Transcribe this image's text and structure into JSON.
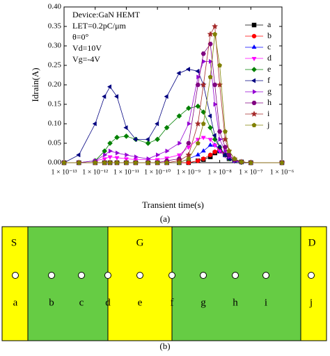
{
  "chart_data": {
    "type": "line",
    "xscale": "log",
    "ylabel": "Idrain(A)",
    "xlabel": "Transient time(s)",
    "annotations": [
      "Device:GaN HEMT",
      "LET=0.2pC/μm",
      "θ=0°",
      "Vd=10V",
      "Vg=-4V"
    ],
    "xlim": [
      1e-13,
      1e-06
    ],
    "xticks": [
      {
        "value": 1e-13,
        "label": "1 × 10⁻¹³"
      },
      {
        "value": 1e-12,
        "label": "1 × 10⁻¹²"
      },
      {
        "value": 1e-11,
        "label": "1 × 10⁻¹¹"
      },
      {
        "value": 1e-10,
        "label": "1 × 10⁻¹⁰"
      },
      {
        "value": 1e-09,
        "label": "1 × 10⁻⁹"
      },
      {
        "value": 1e-08,
        "label": "1 × 10⁻⁸"
      },
      {
        "value": 1e-07,
        "label": "1 × 10⁻⁷"
      },
      {
        "value": 1e-06,
        "label": "1 × 10⁻⁶"
      }
    ],
    "ylim": [
      0,
      0.4
    ],
    "yticks": [
      {
        "value": 0,
        "label": "0.00"
      },
      {
        "value": 0.05,
        "label": "0.05"
      },
      {
        "value": 0.1,
        "label": "0.10"
      },
      {
        "value": 0.15,
        "label": "0.15"
      },
      {
        "value": 0.2,
        "label": "0.20"
      },
      {
        "value": 0.25,
        "label": "0.25"
      },
      {
        "value": 0.3,
        "label": "0.30"
      },
      {
        "value": 0.35,
        "label": "0.35"
      },
      {
        "value": 0.4,
        "label": "0.40"
      }
    ],
    "x": [
      1e-13,
      3e-13,
      1e-12,
      2e-12,
      3e-12,
      5e-12,
      1e-11,
      2e-11,
      5e-11,
      1e-10,
      2e-10,
      5e-10,
      1e-09,
      2e-09,
      3e-09,
      5e-09,
      7e-09,
      1e-08,
      1.5e-08,
      2e-08,
      3e-08,
      5e-08,
      1e-07,
      1e-06
    ],
    "legend": "upper right",
    "series": [
      {
        "name": "a",
        "color": "#000000",
        "marker": "square",
        "values": [
          0,
          0,
          0,
          0,
          0,
          0,
          0,
          0,
          0,
          0,
          0,
          0,
          0,
          0.005,
          0.008,
          0.015,
          0.025,
          0.03,
          0.02,
          0.01,
          0.005,
          0.002,
          0,
          0
        ]
      },
      {
        "name": "b",
        "color": "#ff0000",
        "marker": "circle",
        "values": [
          0,
          0,
          0,
          0,
          0,
          0,
          0,
          0,
          0,
          0,
          0,
          0,
          0,
          0.005,
          0.01,
          0.02,
          0.028,
          0.035,
          0.02,
          0.01,
          0.005,
          0.002,
          0,
          0
        ]
      },
      {
        "name": "c",
        "color": "#0000ff",
        "marker": "tri-up",
        "values": [
          0,
          0,
          0,
          0,
          0,
          0,
          0,
          0,
          0,
          0,
          0,
          0,
          0.01,
          0.02,
          0.03,
          0.045,
          0.045,
          0.03,
          0.018,
          0.01,
          0.004,
          0.001,
          0,
          0
        ]
      },
      {
        "name": "d",
        "color": "#ff00ff",
        "marker": "tri-down",
        "values": [
          0,
          0,
          0.005,
          0.01,
          0.015,
          0.013,
          0.01,
          0.008,
          0.008,
          0.008,
          0.012,
          0.02,
          0.04,
          0.06,
          0.065,
          0.06,
          0.045,
          0.03,
          0.018,
          0.01,
          0.004,
          0.001,
          0,
          0
        ]
      },
      {
        "name": "e",
        "color": "#008000",
        "marker": "diamond",
        "values": [
          0,
          0,
          0.005,
          0.03,
          0.05,
          0.065,
          0.068,
          0.06,
          0.05,
          0.06,
          0.09,
          0.12,
          0.14,
          0.145,
          0.13,
          0.09,
          0.06,
          0.04,
          0.02,
          0.01,
          0.005,
          0.001,
          0,
          0
        ]
      },
      {
        "name": "f",
        "color": "#000080",
        "marker": "tri-left",
        "values": [
          0,
          0.02,
          0.1,
          0.17,
          0.195,
          0.17,
          0.09,
          0.06,
          0.06,
          0.1,
          0.17,
          0.23,
          0.24,
          0.235,
          0.2,
          0.12,
          0.07,
          0.04,
          0.02,
          0.01,
          0.005,
          0.002,
          0,
          0
        ]
      },
      {
        "name": "g",
        "color": "#9400d3",
        "marker": "tri-right",
        "values": [
          0,
          0,
          0.005,
          0.02,
          0.03,
          0.025,
          0.02,
          0.015,
          0.01,
          0.02,
          0.03,
          0.05,
          0.1,
          0.22,
          0.26,
          0.26,
          0.15,
          0.06,
          0.03,
          0.015,
          0.005,
          0.001,
          0,
          0
        ]
      },
      {
        "name": "h",
        "color": "#800080",
        "marker": "hexagon",
        "values": [
          0,
          0,
          0,
          0,
          0,
          0,
          0,
          0,
          0,
          0,
          0.005,
          0.01,
          0.05,
          0.2,
          0.28,
          0.305,
          0.2,
          0.08,
          0.04,
          0.02,
          0.008,
          0.002,
          0,
          0
        ]
      },
      {
        "name": "i",
        "color": "#a52a2a",
        "marker": "star",
        "values": [
          0,
          0,
          0,
          0,
          0,
          0,
          0,
          0,
          0,
          0,
          0,
          0.005,
          0.02,
          0.1,
          0.2,
          0.33,
          0.35,
          0.2,
          0.06,
          0.03,
          0.01,
          0.002,
          0,
          0
        ]
      },
      {
        "name": "j",
        "color": "#808000",
        "marker": "pentagon",
        "values": [
          0,
          0,
          0,
          0,
          0,
          0,
          0,
          0,
          0,
          0,
          0,
          0,
          0.01,
          0.05,
          0.1,
          0.22,
          0.33,
          0.25,
          0.08,
          0.03,
          0.01,
          0.002,
          0,
          0
        ]
      }
    ]
  },
  "panel_labels": [
    "(a)",
    "(b)"
  ],
  "diagram": {
    "regions": [
      "S",
      "G",
      "D"
    ],
    "points": [
      "a",
      "b",
      "c",
      "d",
      "e",
      "f",
      "g",
      "h",
      "i",
      "j"
    ]
  }
}
